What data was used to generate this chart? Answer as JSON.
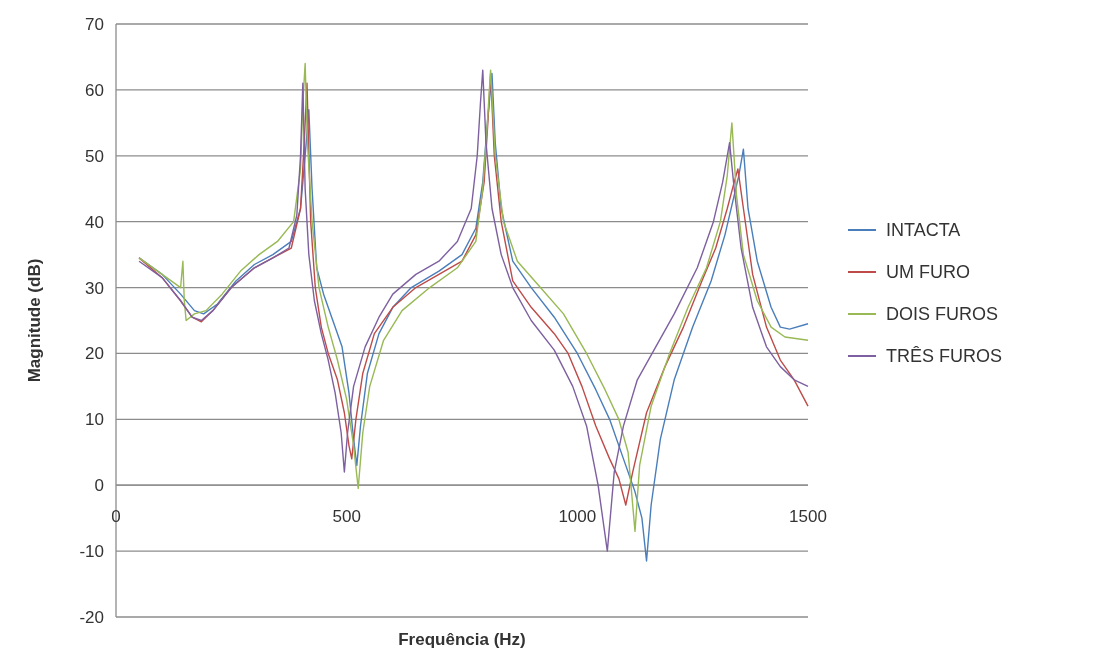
{
  "chart_data": {
    "type": "line",
    "xlabel": "Frequência (Hz)",
    "ylabel": "Magnitude (dB)",
    "xlim": [
      0,
      1500
    ],
    "xticks": [
      0,
      500,
      1000,
      1500
    ],
    "ylim": [
      -20,
      70
    ],
    "yticks": [
      -20,
      -10,
      0,
      10,
      20,
      30,
      40,
      50,
      60,
      70
    ],
    "grid": "y",
    "legend": "right",
    "marker": "none",
    "line_style": "solid",
    "series": [
      {
        "name": "INTACTA",
        "color": "#4a7ebb",
        "x": [
          50,
          100,
          140,
          170,
          190,
          220,
          260,
          300,
          340,
          380,
          400,
          410,
          418,
          425,
          435,
          450,
          470,
          490,
          505,
          515,
          522,
          530,
          545,
          570,
          600,
          640,
          700,
          750,
          780,
          795,
          805,
          815,
          822,
          835,
          860,
          900,
          950,
          1000,
          1040,
          1070,
          1100,
          1125,
          1140,
          1150,
          1160,
          1180,
          1210,
          1250,
          1290,
          1320,
          1340,
          1350,
          1360,
          1370,
          1390,
          1420,
          1440,
          1460,
          1500
        ],
        "values": [
          34.5,
          32,
          29,
          26.5,
          26,
          27.5,
          31,
          33.5,
          35,
          37,
          42,
          50,
          57,
          45,
          33,
          29,
          25,
          21,
          14,
          7,
          3,
          9,
          17,
          23,
          27,
          30,
          32.5,
          35,
          39,
          46,
          55,
          62.5,
          52,
          42,
          34,
          30,
          25.5,
          20,
          14.5,
          10,
          4,
          -1,
          -5,
          -11.5,
          -3,
          7,
          16,
          24,
          31,
          38,
          44,
          47,
          51,
          42,
          34,
          27,
          24,
          23.7,
          24.5
        ]
      },
      {
        "name": "UM FURO",
        "color": "#be4b48",
        "x": [
          50,
          100,
          140,
          165,
          185,
          210,
          250,
          300,
          340,
          380,
          400,
          408,
          414,
          422,
          432,
          445,
          460,
          480,
          495,
          505,
          511,
          520,
          535,
          560,
          600,
          650,
          700,
          750,
          780,
          798,
          806,
          812,
          820,
          835,
          860,
          900,
          950,
          980,
          1010,
          1040,
          1070,
          1090,
          1105,
          1120,
          1150,
          1190,
          1230,
          1270,
          1300,
          1325,
          1340,
          1348,
          1360,
          1380,
          1410,
          1440,
          1470,
          1500
        ],
        "values": [
          34.5,
          31.5,
          28,
          25.5,
          24.8,
          26.5,
          30,
          33,
          34.5,
          36,
          42,
          52,
          61,
          40,
          30,
          24,
          20,
          16,
          11,
          6,
          4,
          10,
          17,
          23,
          27,
          30,
          32,
          34,
          38,
          46,
          55,
          62.5,
          50,
          40,
          31,
          27,
          23,
          20,
          15,
          9,
          4,
          1,
          -3,
          2,
          11,
          18,
          24,
          31,
          36,
          42,
          46,
          48,
          42,
          32,
          24,
          19,
          16,
          12
        ]
      },
      {
        "name": "DOIS FUROS",
        "color": "#98b954",
        "x": [
          50,
          100,
          140,
          145,
          148,
          152,
          170,
          195,
          230,
          270,
          310,
          350,
          385,
          400,
          405,
          410,
          415,
          425,
          440,
          460,
          480,
          500,
          515,
          525,
          535,
          550,
          580,
          620,
          680,
          740,
          780,
          795,
          805,
          812,
          822,
          840,
          870,
          920,
          970,
          1020,
          1060,
          1090,
          1110,
          1125,
          1135,
          1160,
          1200,
          1240,
          1280,
          1310,
          1325,
          1335,
          1345,
          1360,
          1390,
          1420,
          1450,
          1500
        ],
        "values": [
          34.5,
          32,
          30,
          34,
          28,
          25,
          26,
          26.5,
          29,
          32.5,
          35,
          37,
          40,
          48,
          58,
          64,
          52,
          40,
          30,
          24,
          19,
          13,
          6,
          -0.5,
          8,
          15,
          22,
          26.5,
          30,
          33,
          37,
          45,
          55,
          63,
          50,
          40,
          34,
          30,
          26,
          20,
          14.5,
          10,
          5,
          -7,
          3,
          12,
          20,
          27,
          33,
          40,
          47,
          55,
          44,
          35,
          28,
          24,
          22.5,
          22
        ]
      },
      {
        "name": "TRÊS FUROS",
        "color": "#7d60a0",
        "x": [
          50,
          100,
          140,
          165,
          185,
          210,
          250,
          300,
          340,
          375,
          392,
          400,
          405,
          410,
          418,
          430,
          445,
          460,
          475,
          488,
          495,
          502,
          515,
          540,
          570,
          600,
          650,
          700,
          740,
          770,
          783,
          790,
          795,
          802,
          815,
          835,
          860,
          900,
          950,
          990,
          1020,
          1045,
          1065,
          1080,
          1100,
          1130,
          1170,
          1210,
          1260,
          1295,
          1315,
          1330,
          1340,
          1355,
          1380,
          1410,
          1440,
          1470,
          1500
        ],
        "values": [
          34,
          31.5,
          28,
          25.5,
          25,
          26.5,
          30,
          33,
          34.5,
          36,
          41,
          50,
          61,
          45,
          35,
          28,
          23,
          19,
          14,
          8,
          2,
          8,
          15,
          21,
          25.5,
          29,
          32,
          34,
          37,
          42,
          50,
          58,
          63,
          52,
          42,
          35,
          30,
          25,
          20.5,
          15,
          9,
          0,
          -10,
          2,
          9,
          16,
          21,
          26,
          33,
          40,
          46,
          52,
          45,
          36,
          27,
          21,
          18,
          16,
          15
        ]
      }
    ]
  }
}
